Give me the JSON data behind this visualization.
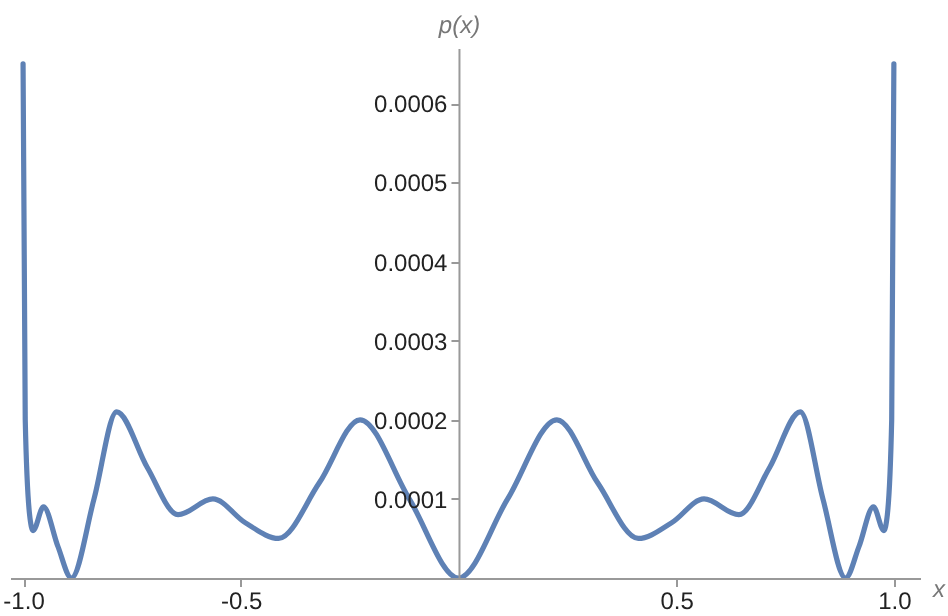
{
  "chart_data": {
    "type": "line",
    "xlabel": "x",
    "ylabel": "p(x)",
    "x": [
      -1.0,
      -0.995,
      -0.985,
      -0.977,
      -0.953,
      -0.92,
      -0.889,
      -0.837,
      -0.785,
      -0.715,
      -0.644,
      -0.564,
      -0.49,
      -0.413,
      -0.32,
      -0.226,
      -0.113,
      0,
      0.113,
      0.226,
      0.32,
      0.413,
      0.49,
      0.564,
      0.644,
      0.715,
      0.785,
      0.837,
      0.889,
      0.92,
      0.953,
      0.977,
      0.985,
      0.995,
      1.0
    ],
    "series": [
      {
        "color": "#5e81b5",
        "values": [
          0.00065,
          0.0002,
          8e-05,
          6e-05,
          9e-05,
          4e-05,
          0.0,
          0.0001,
          0.00021,
          0.00014,
          8e-05,
          0.0001,
          7e-05,
          5e-05,
          0.00012,
          0.0002,
          0.0001,
          0.0,
          0.0001,
          0.0002,
          0.00012,
          5e-05,
          7e-05,
          0.0001,
          8e-05,
          0.00014,
          0.00021,
          0.0001,
          0.0,
          4e-05,
          9e-05,
          6e-05,
          8e-05,
          0.0002,
          0.00065
        ]
      }
    ],
    "xlim": [
      -1.03,
      1.06
    ],
    "ylim": [
      0,
      0.00067
    ],
    "xticks": [
      {
        "value": -1,
        "label": "-1.0"
      },
      {
        "value": -0.5,
        "label": "-0.5"
      },
      {
        "value": 0.5,
        "label": "0.5"
      },
      {
        "value": 1,
        "label": "1.0"
      }
    ],
    "yticks": [
      0.0001,
      0.0002,
      0.0003,
      0.0004,
      0.0005,
      0.0006
    ],
    "grid": false,
    "marker": "none",
    "line_style": "solid"
  }
}
